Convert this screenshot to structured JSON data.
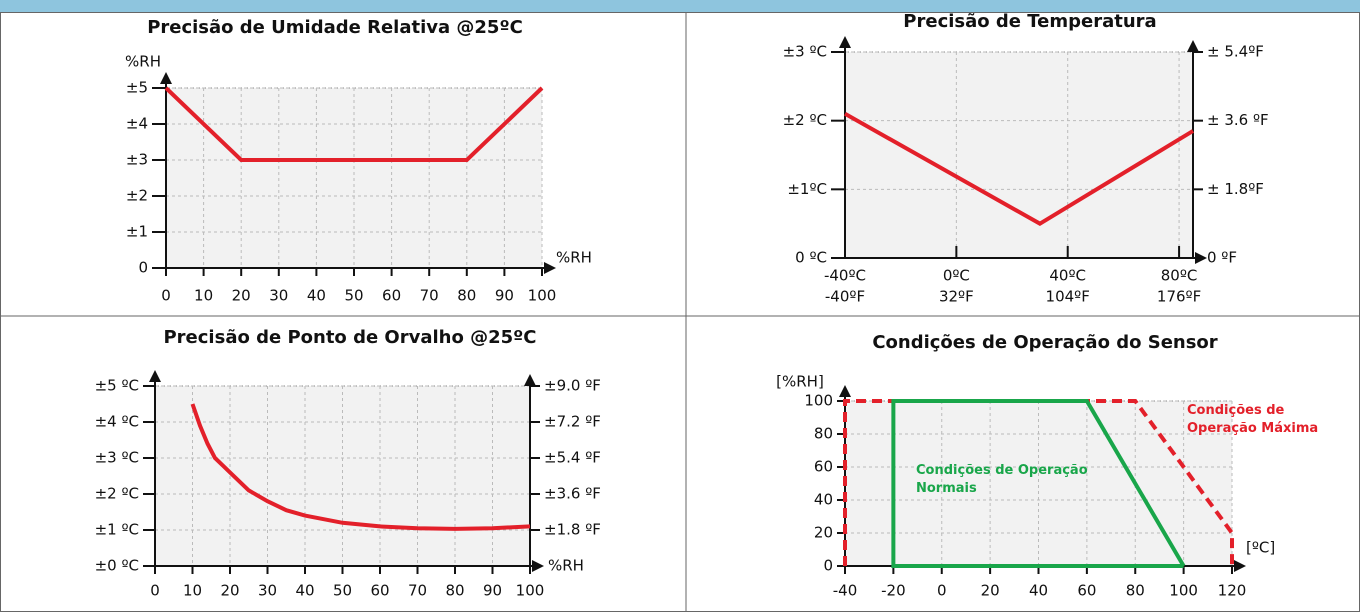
{
  "chart_data": [
    {
      "type": "line",
      "title": "Precisão de Umidade Relativa @25ºC",
      "xlabel": "%RH",
      "ylabel": "%RH",
      "x": [
        0,
        20,
        80,
        100
      ],
      "values": [
        5,
        3,
        3,
        5
      ],
      "color": "#e3202a",
      "xlim": [
        0,
        100
      ],
      "xticks": [
        0,
        10,
        20,
        30,
        40,
        50,
        60,
        70,
        80,
        90,
        100
      ],
      "ylim": [
        0,
        5
      ],
      "yticks": [
        0,
        {
          "value": 1,
          "label": "±1"
        },
        {
          "value": 2,
          "label": "±2"
        },
        {
          "value": 3,
          "label": "±3"
        },
        {
          "value": 4,
          "label": "±4"
        },
        {
          "value": 5,
          "label": "±5"
        }
      ],
      "grid": true
    },
    {
      "type": "line",
      "title": "Precisão de Temperatura",
      "x": [
        -40,
        30,
        85
      ],
      "values": [
        2.1,
        0.5,
        1.85
      ],
      "color": "#e3202a",
      "xlim": [
        -40,
        85
      ],
      "xticks": [
        {
          "value": -40,
          "label": "-40ºC"
        },
        {
          "value": 0,
          "label": "0ºC"
        },
        {
          "value": 40,
          "label": "40ºC"
        },
        {
          "value": 80,
          "label": "80ºC"
        }
      ],
      "x2lim": [
        -40,
        185
      ],
      "x2ticks": [
        {
          "value": -40,
          "label": "-40ºF"
        },
        {
          "value": 32,
          "label": "32ºF"
        },
        {
          "value": 104,
          "label": "104ºF"
        },
        {
          "value": 176,
          "label": "176ºF"
        }
      ],
      "ylim": [
        0,
        3
      ],
      "yticks": [
        {
          "value": 0,
          "label": "0 ºC"
        },
        {
          "value": 1,
          "label": "±1ºC"
        },
        {
          "value": 2,
          "label": "±2 ºC"
        },
        {
          "value": 3,
          "label": "±3 ºC"
        }
      ],
      "y2lim": [
        0,
        5.4
      ],
      "y2ticks": [
        {
          "value": 0,
          "label": "0 ºF"
        },
        {
          "value": 1.8,
          "label": "± 1.8ºF"
        },
        {
          "value": 3.6,
          "label": "± 3.6 ºF"
        },
        {
          "value": 5.4,
          "label": "± 5.4ºF"
        }
      ],
      "grid": true
    },
    {
      "type": "line",
      "title": "Precisão de Ponto de Orvalho @25ºC",
      "xlabel": "%RH",
      "x": [
        10,
        12,
        14,
        16,
        18,
        20,
        25,
        30,
        35,
        40,
        50,
        60,
        70,
        80,
        90,
        100
      ],
      "values": [
        4.5,
        3.9,
        3.4,
        3.0,
        2.8,
        2.6,
        2.1,
        1.8,
        1.55,
        1.4,
        1.2,
        1.1,
        1.05,
        1.03,
        1.05,
        1.1
      ],
      "color": "#e3202a",
      "xlim": [
        0,
        100
      ],
      "xticks": [
        0,
        10,
        20,
        30,
        40,
        50,
        60,
        70,
        80,
        90,
        100
      ],
      "ylim": [
        0,
        5
      ],
      "yticks": [
        {
          "value": 0,
          "label": "±0 ºC"
        },
        {
          "value": 1,
          "label": "±1 ºC"
        },
        {
          "value": 2,
          "label": "±2 ºC"
        },
        {
          "value": 3,
          "label": "±3 ºC"
        },
        {
          "value": 4,
          "label": "±4 ºC"
        },
        {
          "value": 5,
          "label": "±5 ºC"
        }
      ],
      "y2lim": [
        0,
        9
      ],
      "y2ticks": [
        {
          "value": 1.8,
          "label": "±1.8 ºF"
        },
        {
          "value": 3.6,
          "label": "±3.6 ºF"
        },
        {
          "value": 5.4,
          "label": "±5.4 ºF"
        },
        {
          "value": 7.2,
          "label": "±7.2 ºF"
        },
        {
          "value": 9.0,
          "label": "±9.0 ºF"
        }
      ],
      "grid": true
    },
    {
      "type": "line",
      "title": "Condições de Operação do Sensor",
      "xlabel": "[ºC]",
      "ylabel": "[%RH]",
      "series": [
        {
          "name": "Condições de Operação Máxima",
          "color": "#e3202a",
          "linestyle": "dashed",
          "x": [
            -40,
            -40,
            80,
            120,
            120
          ],
          "values": [
            0,
            100,
            100,
            20,
            0
          ]
        },
        {
          "name": "Condições de Operação Normais",
          "color": "#19a64a",
          "linestyle": "solid",
          "x": [
            100,
            -20,
            -20,
            60,
            100
          ],
          "values": [
            0,
            0,
            100,
            100,
            0
          ]
        }
      ],
      "xlim": [
        -40,
        120
      ],
      "xticks": [
        -40,
        -20,
        0,
        20,
        40,
        60,
        80,
        100,
        120
      ],
      "ylim": [
        0,
        100
      ],
      "yticks": [
        0,
        20,
        40,
        60,
        80,
        100
      ],
      "grid": true
    }
  ]
}
